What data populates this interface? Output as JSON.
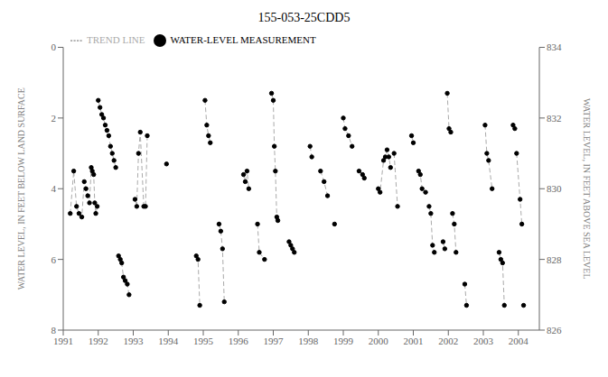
{
  "chart_data": {
    "type": "line",
    "title": "155-053-25CDD5",
    "ylabel": "WATER LEVEL, IN FEET BELOW LAND SURFACE",
    "y2label": "WATER LEVEL, IN FEET ABOVE SEA LEVEL",
    "xlim": [
      1991,
      2004.6
    ],
    "xticks": [
      1991,
      1992,
      1993,
      1994,
      1995,
      1996,
      1997,
      1998,
      1999,
      2000,
      2001,
      2002,
      2003,
      2004
    ],
    "ylim": [
      8,
      0
    ],
    "yticks": [
      0,
      2,
      4,
      6,
      8
    ],
    "y2lim": [
      826,
      834
    ],
    "y2ticks": [
      834,
      832,
      830,
      828,
      826
    ],
    "grid": false,
    "legend": "upper left",
    "series": [
      {
        "name": "TREND LINE",
        "type": "line",
        "line_style": "dashed",
        "color": "#aaaaaa",
        "x": [
          1991.2,
          1991.3,
          1991.38,
          1991.45,
          1991.53,
          1991.6,
          1991.65,
          1991.7,
          1991.75,
          1991.8,
          1991.83,
          1991.87,
          1991.9,
          1991.93,
          1991.97,
          1992.0,
          1992.0,
          1992.05,
          1992.1,
          1992.15,
          1992.2,
          1992.25,
          1992.3,
          1992.35,
          1992.4,
          1992.45,
          1992.5,
          1992.58,
          1992.58,
          1992.63,
          1992.67,
          1992.72,
          1992.77,
          1992.83,
          1992.88,
          1993.05,
          1993.05,
          1993.1,
          1993.15,
          1993.2,
          1993.3,
          1993.35,
          1993.4,
          1993.95,
          1993.95,
          1994.8,
          1994.8,
          1994.85,
          1994.9,
          1995.05,
          1995.05,
          1995.1,
          1995.15,
          1995.2,
          1995.45,
          1995.45,
          1995.5,
          1995.55,
          1995.6,
          1996.15,
          1996.15,
          1996.2,
          1996.25,
          1996.3,
          1996.55,
          1996.55,
          1996.6,
          1996.75,
          1996.95,
          1996.95,
          1997.0,
          1997.03,
          1997.06,
          1997.1,
          1997.13,
          1997.45,
          1997.45,
          1997.5,
          1997.55,
          1997.6,
          1998.05,
          1998.05,
          1998.1,
          1998.35,
          1998.35,
          1998.45,
          1998.55,
          1998.75,
          1998.75,
          1999.0,
          1999.0,
          1999.05,
          1999.15,
          1999.25,
          1999.45,
          1999.45,
          1999.55,
          1999.6,
          2000.0,
          2000.0,
          2000.05,
          2000.15,
          2000.2,
          2000.25,
          2000.3,
          2000.35,
          2000.45,
          2000.45,
          2000.55,
          2000.95,
          2000.95,
          2001.0,
          2001.15,
          2001.15,
          2001.2,
          2001.25,
          2001.35,
          2001.45,
          2001.45,
          2001.5,
          2001.55,
          2001.6,
          2001.85,
          2001.85,
          2001.9,
          2001.97,
          2001.97,
          2002.02,
          2002.07,
          2002.12,
          2002.12,
          2002.17,
          2002.22,
          2002.47,
          2002.47,
          2002.52,
          2003.05,
          2003.05,
          2003.1,
          2003.15,
          2003.25,
          2003.45,
          2003.45,
          2003.5,
          2003.55,
          2003.6,
          2003.85,
          2003.85,
          2003.9,
          2003.95,
          2003.95,
          2004.05,
          2004.1,
          2004.15,
          2004.15
        ],
        "values": [
          4.7,
          3.5,
          4.5,
          4.7,
          4.8,
          3.8,
          4.0,
          4.2,
          4.4,
          3.4,
          3.5,
          3.6,
          4.4,
          4.7,
          4.5,
          null,
          1.5,
          1.7,
          1.9,
          2.0,
          2.2,
          2.35,
          2.5,
          2.8,
          3.0,
          3.2,
          3.4,
          null,
          5.9,
          6.0,
          6.1,
          6.5,
          6.6,
          6.7,
          7.0,
          null,
          4.3,
          4.5,
          3.0,
          2.4,
          4.5,
          4.5,
          2.5,
          null,
          3.3,
          null,
          5.9,
          6.0,
          7.3,
          null,
          1.5,
          2.2,
          2.5,
          2.7,
          null,
          5.0,
          5.2,
          5.7,
          7.2,
          null,
          3.6,
          3.8,
          3.5,
          4.0,
          null,
          5.0,
          5.8,
          6.0,
          null,
          1.3,
          1.5,
          2.8,
          3.5,
          4.8,
          4.9,
          null,
          5.5,
          5.6,
          5.7,
          5.8,
          null,
          2.8,
          3.1,
          null,
          3.5,
          3.8,
          4.2,
          null,
          5.0,
          null,
          2.0,
          2.3,
          2.5,
          2.8,
          null,
          3.5,
          3.6,
          3.7,
          null,
          4.0,
          4.1,
          3.2,
          3.1,
          2.9,
          3.1,
          3.4,
          null,
          3.0,
          4.5,
          null,
          2.5,
          2.7,
          null,
          3.5,
          3.6,
          4.0,
          4.1,
          null,
          4.5,
          4.7,
          5.6,
          5.8,
          null,
          5.5,
          5.7,
          null,
          1.3,
          2.3,
          2.4,
          null,
          4.7,
          5.0,
          5.8,
          null,
          6.7,
          7.3,
          null,
          2.2,
          3.0,
          3.2,
          4.0,
          null,
          5.8,
          6.0,
          6.1,
          7.3,
          null,
          2.2,
          2.3,
          null,
          3.0,
          4.3,
          5.0,
          null,
          7.3
        ]
      },
      {
        "name": "WATER-LEVEL MEASUREMENT",
        "type": "scatter",
        "marker": "circle",
        "color": "#000000",
        "x": [
          1991.2,
          1991.3,
          1991.38,
          1991.45,
          1991.53,
          1991.6,
          1991.65,
          1991.7,
          1991.75,
          1991.8,
          1991.83,
          1991.87,
          1991.9,
          1991.93,
          1991.97,
          1992.0,
          1992.05,
          1992.1,
          1992.15,
          1992.2,
          1992.25,
          1992.3,
          1992.35,
          1992.4,
          1992.45,
          1992.5,
          1992.58,
          1992.63,
          1992.67,
          1992.72,
          1992.77,
          1992.83,
          1992.88,
          1993.05,
          1993.1,
          1993.15,
          1993.2,
          1993.3,
          1993.35,
          1993.4,
          1993.95,
          1994.8,
          1994.85,
          1994.9,
          1995.05,
          1995.1,
          1995.15,
          1995.2,
          1995.45,
          1995.5,
          1995.55,
          1995.6,
          1996.15,
          1996.2,
          1996.25,
          1996.3,
          1996.55,
          1996.6,
          1996.75,
          1996.95,
          1997.0,
          1997.03,
          1997.06,
          1997.1,
          1997.13,
          1997.45,
          1997.5,
          1997.55,
          1997.6,
          1998.05,
          1998.1,
          1998.35,
          1998.45,
          1998.55,
          1998.75,
          1999.0,
          1999.05,
          1999.15,
          1999.25,
          1999.45,
          1999.55,
          1999.6,
          2000.0,
          2000.05,
          2000.15,
          2000.2,
          2000.25,
          2000.3,
          2000.35,
          2000.45,
          2000.55,
          2000.95,
          2001.0,
          2001.15,
          2001.2,
          2001.25,
          2001.35,
          2001.45,
          2001.5,
          2001.55,
          2001.6,
          2001.85,
          2001.9,
          2001.97,
          2002.02,
          2002.07,
          2002.12,
          2002.17,
          2002.22,
          2002.47,
          2002.52,
          2003.05,
          2003.1,
          2003.15,
          2003.25,
          2003.45,
          2003.5,
          2003.55,
          2003.6,
          2003.85,
          2003.9,
          2003.95,
          2004.05,
          2004.1,
          2004.15
        ],
        "values": [
          4.7,
          3.5,
          4.5,
          4.7,
          4.8,
          3.8,
          4.0,
          4.2,
          4.4,
          3.4,
          3.5,
          3.6,
          4.4,
          4.7,
          4.5,
          1.5,
          1.7,
          1.9,
          2.0,
          2.2,
          2.35,
          2.5,
          2.8,
          3.0,
          3.2,
          3.4,
          5.9,
          6.0,
          6.1,
          6.5,
          6.6,
          6.7,
          7.0,
          4.3,
          4.5,
          3.0,
          2.4,
          4.5,
          4.5,
          2.5,
          3.3,
          5.9,
          6.0,
          7.3,
          1.5,
          2.2,
          2.5,
          2.7,
          5.0,
          5.2,
          5.7,
          7.2,
          3.6,
          3.8,
          3.5,
          4.0,
          5.0,
          5.8,
          6.0,
          1.3,
          1.5,
          2.8,
          3.5,
          4.8,
          4.9,
          5.5,
          5.6,
          5.7,
          5.8,
          2.8,
          3.1,
          3.5,
          3.8,
          4.2,
          5.0,
          2.0,
          2.3,
          2.5,
          2.8,
          3.5,
          3.6,
          3.7,
          4.0,
          4.1,
          3.2,
          3.1,
          2.9,
          3.1,
          3.4,
          3.0,
          4.5,
          2.5,
          2.7,
          3.5,
          3.6,
          4.0,
          4.1,
          4.5,
          4.7,
          5.6,
          5.8,
          5.5,
          5.7,
          1.3,
          2.3,
          2.4,
          4.7,
          5.0,
          5.8,
          6.7,
          7.3,
          2.2,
          3.0,
          3.2,
          4.0,
          5.8,
          6.0,
          6.1,
          7.3,
          2.2,
          2.3,
          3.0,
          4.3,
          5.0,
          7.3
        ]
      }
    ]
  }
}
